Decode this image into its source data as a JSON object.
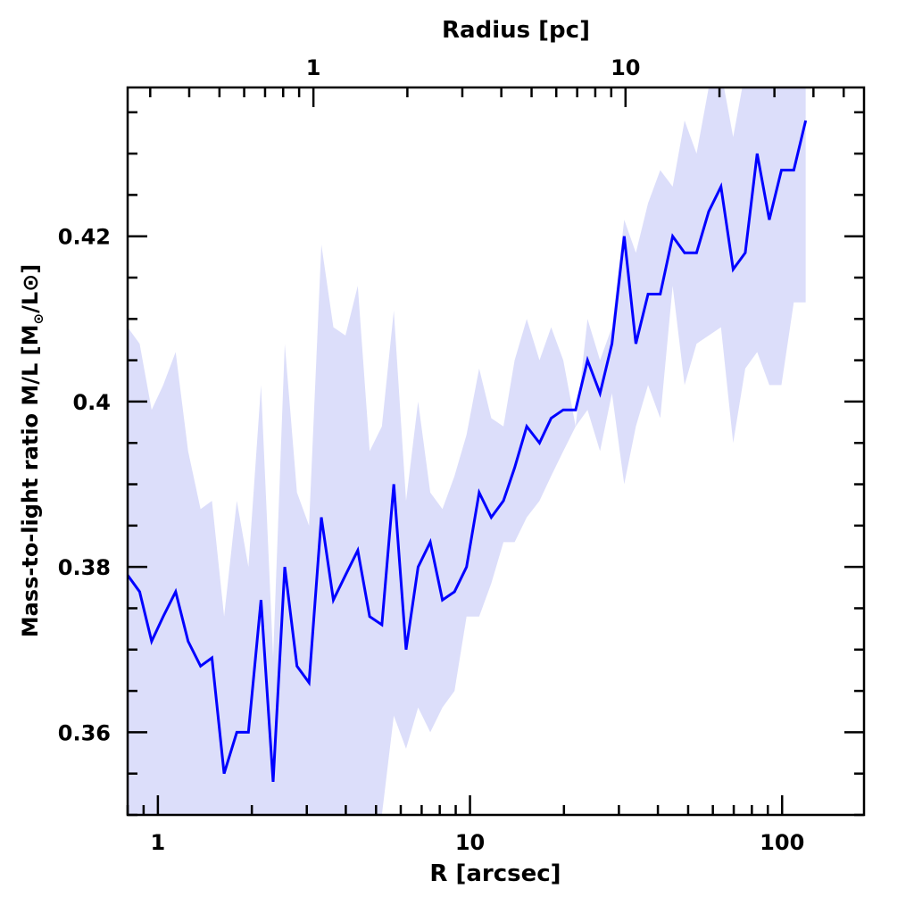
{
  "chart_data": {
    "type": "line",
    "title": "",
    "xlabel": "R [arcsec]",
    "ylabel": "Mass-to-light ratio M/L [M⊙/L⊙]",
    "top_xlabel": "Radius [pc]",
    "xscale": "log",
    "xlim": [
      0.8,
      183
    ],
    "ylim": [
      0.35,
      0.438
    ],
    "x_ticks": [
      1,
      10,
      100
    ],
    "x_tick_labels": [
      "1",
      "10",
      "100"
    ],
    "top_ticks_pc": [
      1,
      10
    ],
    "top_tick_labels": [
      "1",
      "10"
    ],
    "arcsec_per_pc": 3.15,
    "y_ticks": [
      0.36,
      0.38,
      0.4,
      0.42
    ],
    "y_tick_labels": [
      "0.36",
      "0.38",
      "0.4",
      "0.42"
    ],
    "grid": false,
    "colors": {
      "line": "#0000ff",
      "band": "#dcdefa",
      "axis": "#000000"
    },
    "x": [
      0.8,
      0.874,
      0.955,
      1.04,
      1.14,
      1.25,
      1.37,
      1.49,
      1.63,
      1.79,
      1.95,
      2.14,
      2.34,
      2.55,
      2.79,
      3.05,
      3.34,
      3.65,
      3.99,
      4.37,
      4.77,
      5.22,
      5.7,
      6.24,
      6.82,
      7.46,
      8.16,
      8.92,
      9.75,
      10.7,
      11.7,
      12.8,
      13.9,
      15.2,
      16.7,
      18.2,
      19.9,
      21.8,
      23.8,
      26.1,
      28.5,
      31.2,
      34.0,
      37.2,
      40.7,
      44.6,
      48.7,
      53.2,
      58.2,
      63.7,
      69.7,
      76.2,
      83.2,
      91.0,
      99.5,
      109,
      119
    ],
    "series": [
      {
        "name": "M/L",
        "values": [
          0.379,
          0.377,
          0.371,
          0.374,
          0.377,
          0.371,
          0.368,
          0.369,
          0.355,
          0.36,
          0.36,
          0.376,
          0.354,
          0.38,
          0.368,
          0.366,
          0.386,
          0.376,
          0.379,
          0.382,
          0.374,
          0.373,
          0.39,
          0.37,
          0.38,
          0.383,
          0.376,
          0.377,
          0.38,
          0.389,
          0.386,
          0.388,
          0.392,
          0.397,
          0.395,
          0.398,
          0.399,
          0.399,
          0.405,
          0.401,
          0.407,
          0.42,
          0.407,
          0.413,
          0.413,
          0.42,
          0.418,
          0.418,
          0.423,
          0.426,
          0.416,
          0.418,
          0.43,
          0.422,
          0.428,
          0.428,
          0.434
        ]
      },
      {
        "name": "upper",
        "values": [
          0.409,
          0.407,
          0.399,
          0.402,
          0.406,
          0.394,
          0.387,
          0.388,
          0.374,
          0.388,
          0.38,
          0.402,
          0.369,
          0.407,
          0.389,
          0.385,
          0.419,
          0.409,
          0.408,
          0.414,
          0.394,
          0.397,
          0.411,
          0.388,
          0.4,
          0.389,
          0.387,
          0.391,
          0.396,
          0.404,
          0.398,
          0.397,
          0.405,
          0.41,
          0.405,
          0.409,
          0.405,
          0.397,
          0.41,
          0.405,
          0.409,
          0.422,
          0.418,
          0.424,
          0.428,
          0.426,
          0.434,
          0.43,
          0.438,
          0.44,
          0.432,
          0.44,
          0.44,
          0.44,
          0.44,
          0.44,
          0.44
        ]
      },
      {
        "name": "lower",
        "values": [
          0.345,
          0.345,
          0.345,
          0.345,
          0.345,
          0.345,
          0.345,
          0.345,
          0.345,
          0.345,
          0.345,
          0.345,
          0.345,
          0.345,
          0.345,
          0.345,
          0.345,
          0.345,
          0.345,
          0.345,
          0.345,
          0.35,
          0.362,
          0.358,
          0.363,
          0.36,
          0.363,
          0.365,
          0.374,
          0.374,
          0.378,
          0.383,
          0.383,
          0.386,
          0.388,
          0.391,
          0.394,
          0.397,
          0.399,
          0.394,
          0.401,
          0.39,
          0.397,
          0.402,
          0.398,
          0.414,
          0.402,
          0.407,
          0.408,
          0.409,
          0.395,
          0.404,
          0.406,
          0.402,
          0.402,
          0.412,
          0.412
        ]
      }
    ]
  }
}
